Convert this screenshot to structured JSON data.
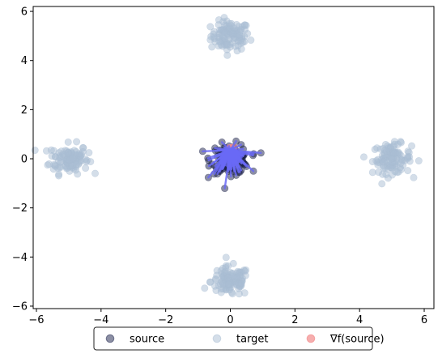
{
  "chart_data": {
    "type": "scatter",
    "title": "",
    "xlabel": "",
    "ylabel": "",
    "xlim": [
      -6.1,
      6.3
    ],
    "ylim": [
      -6.1,
      6.2
    ],
    "xticks": [
      -6,
      -4,
      -2,
      0,
      2,
      4,
      6
    ],
    "yticks": [
      -6,
      -4,
      -2,
      0,
      2,
      4,
      6
    ],
    "xtick_labels": [
      "−6",
      "−4",
      "−2",
      "0",
      "2",
      "4",
      "6"
    ],
    "ytick_labels": [
      "−6",
      "−4",
      "−2",
      "0",
      "2",
      "4",
      "6"
    ],
    "grid": false,
    "legend": {
      "placement": "bottom-center, below axes",
      "entries": [
        "source",
        "target",
        "∇f(source)"
      ]
    },
    "series": [
      {
        "name": "source",
        "color": "#1a1f4a",
        "alpha": 0.5,
        "clusters": [
          {
            "center": [
              0.0,
              0.0
            ],
            "spread": 0.3,
            "count": 130
          }
        ]
      },
      {
        "name": "target",
        "color": "#a9bdd3",
        "alpha": 0.5,
        "clusters": [
          {
            "center": [
              0.0,
              5.0
            ],
            "spread": 0.3,
            "count": 110
          },
          {
            "center": [
              -5.0,
              0.0
            ],
            "spread": 0.3,
            "count": 110
          },
          {
            "center": [
              5.0,
              0.0
            ],
            "spread": 0.3,
            "count": 110
          },
          {
            "center": [
              0.0,
              -5.0
            ],
            "spread": 0.3,
            "count": 110
          }
        ]
      },
      {
        "name": "∇f(source)",
        "color": "#f28b8b",
        "alpha": 0.7,
        "clusters": [
          {
            "center": [
              0.0,
              0.35
            ],
            "spread": 0.06,
            "count": 20
          }
        ]
      }
    ],
    "arrows": {
      "color": "#6a6af5",
      "from_series": "source",
      "description": "arrows from each source point toward its gradient image"
    }
  }
}
